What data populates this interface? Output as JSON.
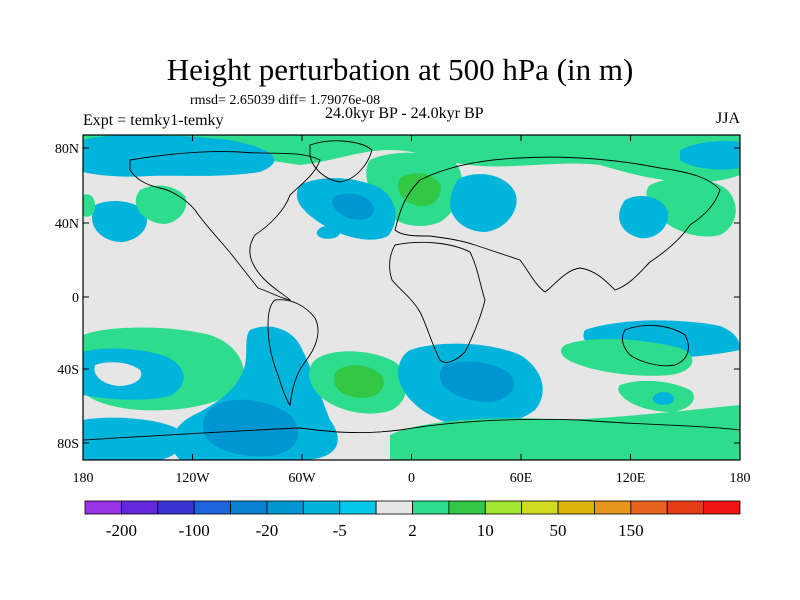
{
  "title": "Height perturbation at 500 hPa (in m)",
  "stats": "rmsd= 2.65039 diff= 1.79076e-08",
  "subtitle": "24.0kyr BP - 24.0kyr BP",
  "experiment": "Expt = temky1-temky",
  "season": "JJA",
  "axes": {
    "y_ticks": [
      "80N",
      "40N",
      "0",
      "40S",
      "80S"
    ],
    "x_ticks": [
      "180",
      "120W",
      "60W",
      "0",
      "60E",
      "120E",
      "180"
    ]
  },
  "colors": {
    "land_bg": "#e6e6e6",
    "c_neg5": "#00b4dc",
    "c_neg20": "#0096d2",
    "c_pos2": "#2ddc8c",
    "c_pos5": "#32c846",
    "c_pos10": "#a0e632"
  },
  "colorbar": {
    "colors": [
      "#9b32e6",
      "#6428dc",
      "#3c32d2",
      "#1e64dc",
      "#0a82d2",
      "#0096d2",
      "#00b4dc",
      "#00c8e6",
      "#e6e6e6",
      "#2ddc8c",
      "#32c846",
      "#a0e632",
      "#d2dc1e",
      "#dcb40a",
      "#e6961e",
      "#e6641e",
      "#e63c14",
      "#f01414"
    ],
    "labels": [
      "-200",
      "-100",
      "-20",
      "-5",
      "2",
      "10",
      "50",
      "150"
    ]
  }
}
